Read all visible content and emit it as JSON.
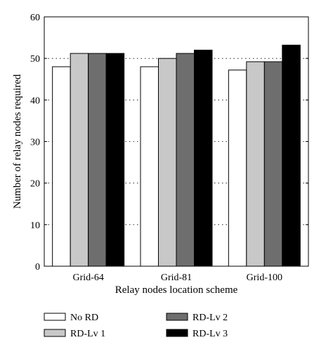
{
  "chart_data": {
    "type": "bar",
    "title": "",
    "xlabel": "Relay nodes location scheme",
    "ylabel": "Number of relay nodes required",
    "ylim": [
      0,
      60
    ],
    "yticks": [
      0,
      10,
      20,
      30,
      40,
      50,
      60
    ],
    "grid": "horizontal dotted",
    "legend_position": "bottom",
    "categories": [
      "Grid-64",
      "Grid-81",
      "Grid-100"
    ],
    "series": [
      {
        "name": "No RD",
        "color": "#ffffff",
        "values": [
          48,
          48,
          47.2
        ]
      },
      {
        "name": "RD-Lv 1",
        "color": "#c8c8c8",
        "values": [
          51.2,
          50,
          49.2
        ]
      },
      {
        "name": "RD-Lv 2",
        "color": "#6e6e6e",
        "values": [
          51.2,
          51.2,
          49.2
        ]
      },
      {
        "name": "RD-Lv 3",
        "color": "#000000",
        "values": [
          51.2,
          52,
          53.2
        ]
      }
    ]
  }
}
